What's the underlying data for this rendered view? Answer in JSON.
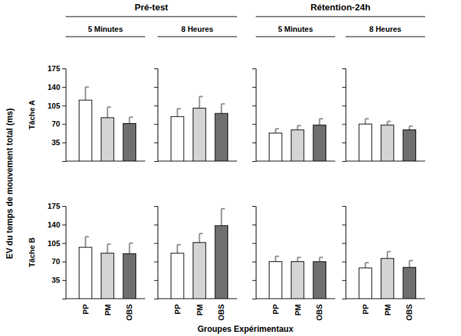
{
  "chart_data": {
    "type": "bar",
    "y_label": "EV du temps de mouvement total (ms)",
    "x_label": "Groupes Expérimentaux",
    "ylim": [
      0,
      175
    ],
    "yticks": [
      35,
      70,
      105,
      140,
      175
    ],
    "categories": [
      "PP",
      "PM",
      "OBS"
    ],
    "colors": [
      "#ffffff",
      "#d4d4d4",
      "#6f6f6f"
    ],
    "phases": [
      {
        "title": "Pré-test",
        "conditions": [
          "5 Minutes",
          "8 Heures"
        ]
      },
      {
        "title": "Rétention-24h",
        "conditions": [
          "5 Minutes",
          "8 Heures"
        ]
      }
    ],
    "rows": [
      {
        "label": "Tâche A",
        "panels": [
          {
            "values": [
              115,
              82,
              71
            ],
            "errors": [
              25,
              20,
              12
            ]
          },
          {
            "values": [
              84,
              100,
              90
            ],
            "errors": [
              15,
              22,
              18
            ]
          },
          {
            "values": [
              53,
              59,
              68
            ],
            "errors": [
              8,
              8,
              12
            ]
          },
          {
            "values": [
              70,
              68,
              59
            ],
            "errors": [
              10,
              7,
              7
            ]
          }
        ]
      },
      {
        "label": "Tâche B",
        "panels": [
          {
            "values": [
              97,
              86,
              85
            ],
            "errors": [
              20,
              17,
              20
            ]
          },
          {
            "values": [
              86,
              106,
              138
            ],
            "errors": [
              16,
              17,
              32
            ]
          },
          {
            "values": [
              70,
              70,
              70
            ],
            "errors": [
              10,
              8,
              8
            ]
          },
          {
            "values": [
              58,
              76,
              59
            ],
            "errors": [
              10,
              13,
              13
            ]
          }
        ]
      }
    ]
  }
}
